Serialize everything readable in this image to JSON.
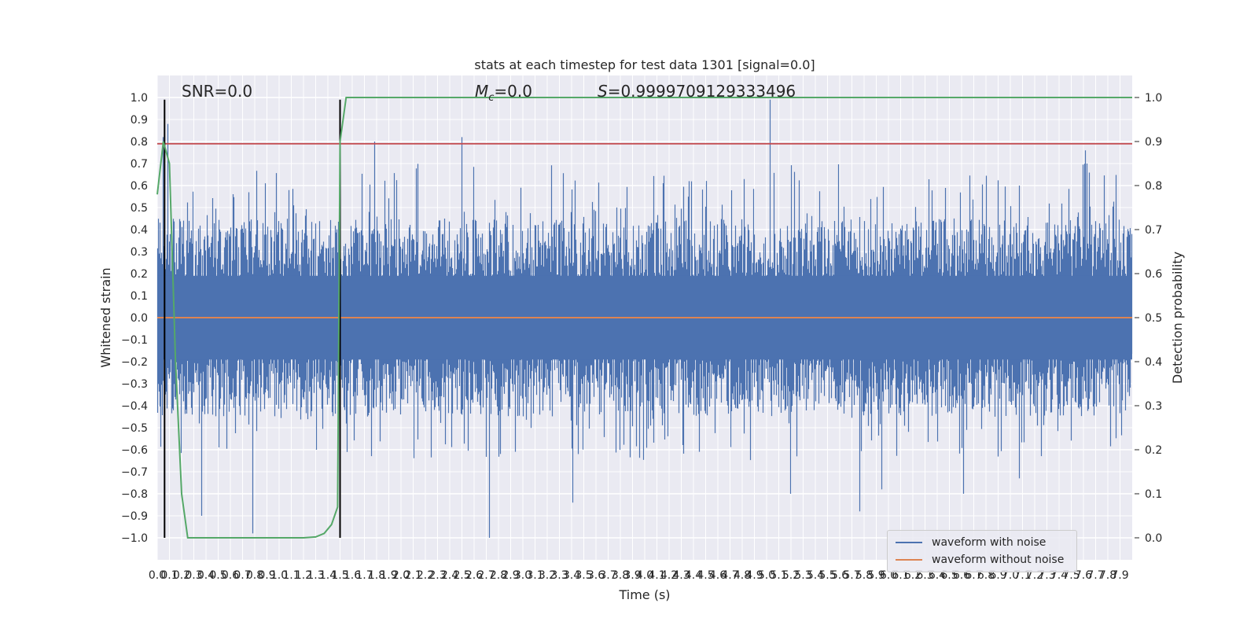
{
  "chart_data": {
    "type": "line",
    "title": "stats at each timestep for test data 1301 [signal=0.0]",
    "xlabel": "Time (s)",
    "ylabel_left": "Whitened strain",
    "ylabel_right": "Detection probability",
    "xlim": [
      0.0,
      8.0
    ],
    "ylim_left": [
      -1.1,
      1.1
    ],
    "ylim_right": [
      -0.05,
      1.05
    ],
    "x_ticks": [
      "0.0",
      "0.1",
      "0.2",
      "0.3",
      "0.4",
      "0.5",
      "0.6",
      "0.7",
      "0.8",
      "0.9",
      "1.0",
      "1.1",
      "1.2",
      "1.3",
      "1.4",
      "1.5",
      "1.6",
      "1.7",
      "1.8",
      "1.9",
      "2.0",
      "2.1",
      "2.2",
      "2.3",
      "2.4",
      "2.5",
      "2.6",
      "2.7",
      "2.8",
      "2.9",
      "3.0",
      "3.1",
      "3.2",
      "3.3",
      "3.4",
      "3.5",
      "3.6",
      "3.7",
      "3.8",
      "3.9",
      "4.0",
      "4.1",
      "4.2",
      "4.3",
      "4.4",
      "4.5",
      "4.6",
      "4.7",
      "4.8",
      "4.9",
      "5.0",
      "5.1",
      "5.2",
      "5.3",
      "5.4",
      "5.5",
      "5.6",
      "5.7",
      "5.8",
      "5.9",
      "6.0",
      "6.1",
      "6.2",
      "6.3",
      "6.4",
      "6.5",
      "6.6",
      "6.7",
      "6.8",
      "6.9",
      "7.0",
      "7.1",
      "7.2",
      "7.3",
      "7.4",
      "7.5",
      "7.6",
      "7.7",
      "7.8",
      "7.9"
    ],
    "y_ticks_left": [
      "−1.0",
      "−0.9",
      "−0.8",
      "−0.7",
      "−0.6",
      "−0.5",
      "−0.4",
      "−0.3",
      "−0.2",
      "−0.1",
      "0.0",
      "0.1",
      "0.2",
      "0.3",
      "0.4",
      "0.5",
      "0.6",
      "0.7",
      "0.8",
      "0.9",
      "1.0"
    ],
    "y_ticks_right": [
      "0.0",
      "0.1",
      "0.2",
      "0.3",
      "0.4",
      "0.5",
      "0.6",
      "0.7",
      "0.8",
      "0.9",
      "1.0"
    ],
    "annotations": {
      "snr": "SNR=0.0",
      "mc_symbol": "M",
      "mc_sub": "c",
      "mc_value": "=0.0",
      "s_symbol": "S",
      "s_value": "=0.9999709129333496"
    },
    "series": [
      {
        "name": "waveform with noise",
        "axis": "left",
        "color": "#4c72b0",
        "envelope_typical": [
          -0.45,
          0.45
        ],
        "peaks": [
          {
            "x": 0.09,
            "y": 0.88
          },
          {
            "x": 0.05,
            "y": 0.82
          },
          {
            "x": 2.5,
            "y": 0.82
          },
          {
            "x": 1.79,
            "y": 0.8
          },
          {
            "x": 7.62,
            "y": 0.76
          },
          {
            "x": 5.03,
            "y": 0.99
          },
          {
            "x": 2.73,
            "y": -1.0
          },
          {
            "x": 0.79,
            "y": -0.98
          },
          {
            "x": 0.37,
            "y": -0.9
          },
          {
            "x": 5.77,
            "y": -0.88
          },
          {
            "x": 3.41,
            "y": -0.84
          },
          {
            "x": 6.62,
            "y": -0.8
          },
          {
            "x": 5.2,
            "y": -0.8
          },
          {
            "x": 5.95,
            "y": -0.78
          },
          {
            "x": 7.08,
            "y": -0.73
          }
        ]
      },
      {
        "name": "waveform without noise",
        "axis": "left",
        "color": "#dd8452",
        "x": [
          0.0,
          8.0
        ],
        "y": [
          0.0,
          0.0
        ]
      },
      {
        "name": "detection probability",
        "axis": "right",
        "color": "#55a868",
        "x": [
          0.0,
          0.05,
          0.1,
          0.15,
          0.2,
          0.25,
          0.3,
          0.5,
          0.8,
          1.0,
          1.2,
          1.3,
          1.37,
          1.43,
          1.48,
          1.5,
          1.55,
          8.0
        ],
        "y": [
          0.78,
          0.9,
          0.85,
          0.4,
          0.1,
          0.0,
          0.0,
          0.0,
          0.0,
          0.0,
          0.0,
          0.002,
          0.01,
          0.03,
          0.07,
          0.9,
          1.0,
          1.0
        ]
      }
    ],
    "reference_lines": [
      {
        "kind": "horizontal",
        "axis": "left",
        "y": 0.79,
        "color": "#c44e52"
      },
      {
        "kind": "vertical",
        "x": 0.06,
        "y_range": [
          -1.0,
          0.99
        ],
        "color": "#000000"
      },
      {
        "kind": "vertical",
        "x": 1.5,
        "y_range": [
          -1.0,
          0.99
        ],
        "color": "#000000"
      }
    ],
    "grid": true,
    "legend_position": "lower right"
  }
}
